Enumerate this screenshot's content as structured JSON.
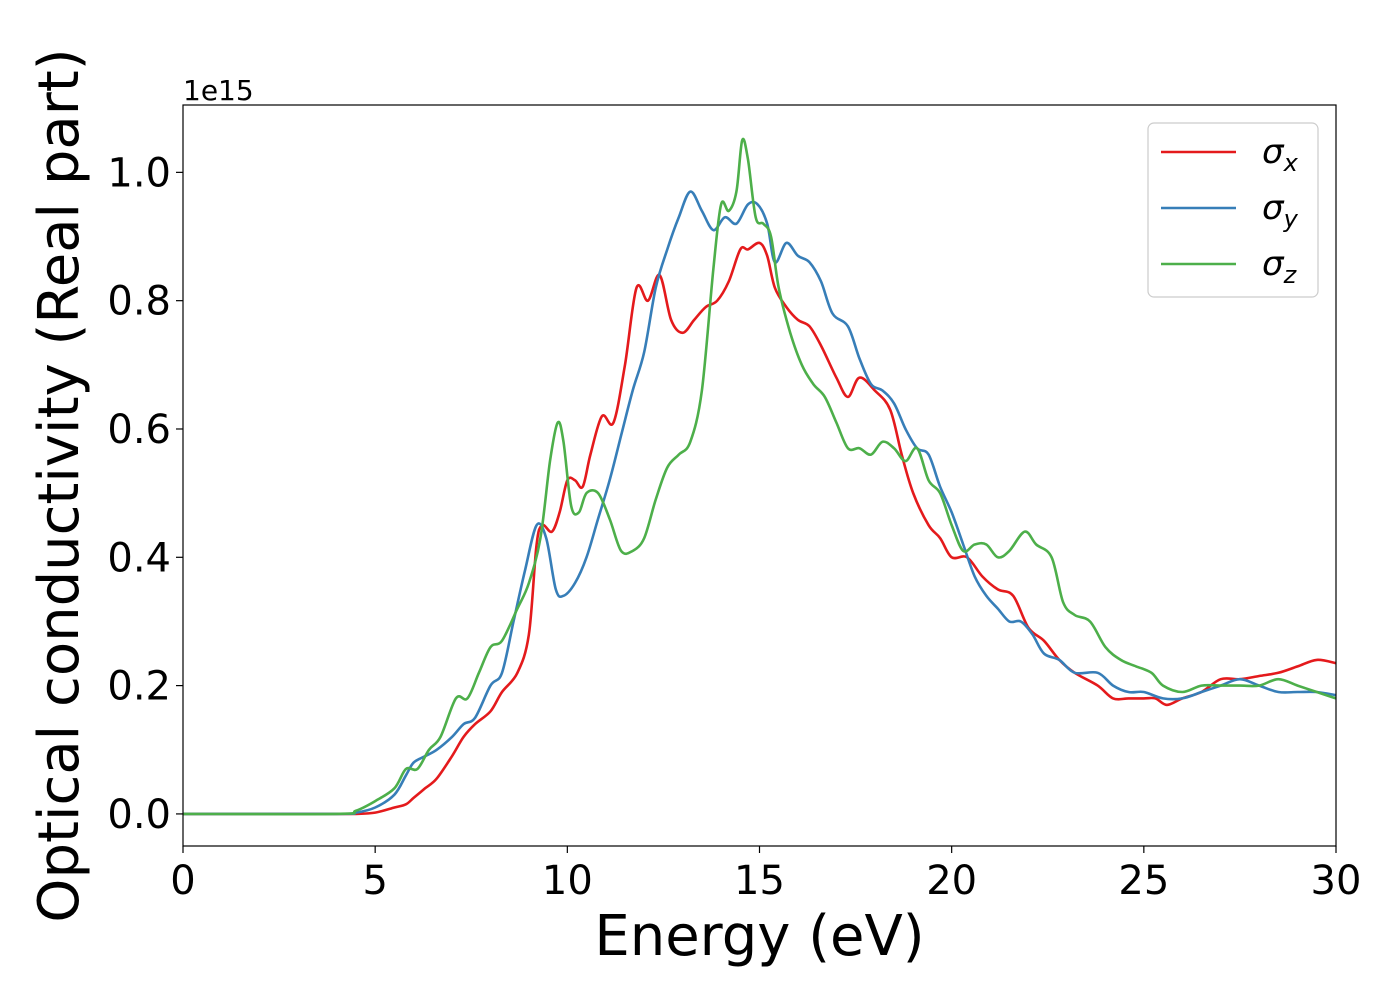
{
  "chart_data": {
    "type": "line",
    "xlabel": "Energy (eV)",
    "ylabel": "Optical conductivity (Real part)",
    "y_offset_label": "1e15",
    "xlim": [
      0,
      30
    ],
    "ylim": [
      -0.05,
      1.105
    ],
    "x_ticks": [
      0,
      5,
      10,
      15,
      20,
      25,
      30
    ],
    "x_tick_labels": [
      "0",
      "5",
      "10",
      "15",
      "20",
      "25",
      "30"
    ],
    "y_ticks": [
      0.0,
      0.2,
      0.4,
      0.6,
      0.8,
      1.0
    ],
    "y_tick_labels": [
      "0.0",
      "0.2",
      "0.4",
      "0.6",
      "0.8",
      "1.0"
    ],
    "grid": false,
    "legend_position": "top-right",
    "series": [
      {
        "name": "σx",
        "symbol": "σ",
        "subscript": "x",
        "color": "#e41a1c",
        "points": [
          [
            0,
            0.0
          ],
          [
            4,
            0.0
          ],
          [
            4.5,
            0.0
          ],
          [
            5,
            0.002
          ],
          [
            5.5,
            0.01
          ],
          [
            5.8,
            0.015
          ],
          [
            6,
            0.025
          ],
          [
            6.3,
            0.04
          ],
          [
            6.6,
            0.055
          ],
          [
            7,
            0.09
          ],
          [
            7.3,
            0.12
          ],
          [
            7.6,
            0.14
          ],
          [
            8,
            0.16
          ],
          [
            8.3,
            0.19
          ],
          [
            8.7,
            0.22
          ],
          [
            9,
            0.28
          ],
          [
            9.2,
            0.42
          ],
          [
            9.35,
            0.45
          ],
          [
            9.6,
            0.44
          ],
          [
            9.8,
            0.47
          ],
          [
            10.0,
            0.52
          ],
          [
            10.2,
            0.52
          ],
          [
            10.4,
            0.51
          ],
          [
            10.6,
            0.56
          ],
          [
            10.9,
            0.62
          ],
          [
            11.2,
            0.61
          ],
          [
            11.5,
            0.7
          ],
          [
            11.8,
            0.82
          ],
          [
            12.1,
            0.8
          ],
          [
            12.4,
            0.84
          ],
          [
            12.7,
            0.77
          ],
          [
            13.0,
            0.75
          ],
          [
            13.3,
            0.77
          ],
          [
            13.6,
            0.79
          ],
          [
            13.9,
            0.8
          ],
          [
            14.2,
            0.83
          ],
          [
            14.5,
            0.88
          ],
          [
            14.7,
            0.88
          ],
          [
            15.0,
            0.89
          ],
          [
            15.2,
            0.87
          ],
          [
            15.4,
            0.82
          ],
          [
            15.7,
            0.79
          ],
          [
            16.0,
            0.77
          ],
          [
            16.3,
            0.76
          ],
          [
            16.6,
            0.73
          ],
          [
            17.0,
            0.68
          ],
          [
            17.3,
            0.65
          ],
          [
            17.6,
            0.68
          ],
          [
            18.0,
            0.66
          ],
          [
            18.4,
            0.63
          ],
          [
            18.7,
            0.56
          ],
          [
            19.0,
            0.5
          ],
          [
            19.4,
            0.45
          ],
          [
            19.7,
            0.43
          ],
          [
            20.0,
            0.4
          ],
          [
            20.4,
            0.4
          ],
          [
            20.8,
            0.37
          ],
          [
            21.2,
            0.35
          ],
          [
            21.6,
            0.34
          ],
          [
            22.0,
            0.29
          ],
          [
            22.4,
            0.27
          ],
          [
            22.8,
            0.24
          ],
          [
            23.2,
            0.22
          ],
          [
            23.8,
            0.2
          ],
          [
            24.2,
            0.18
          ],
          [
            24.6,
            0.18
          ],
          [
            25.0,
            0.18
          ],
          [
            25.3,
            0.18
          ],
          [
            25.6,
            0.17
          ],
          [
            26.0,
            0.18
          ],
          [
            26.5,
            0.19
          ],
          [
            27.0,
            0.21
          ],
          [
            27.5,
            0.21
          ],
          [
            28.0,
            0.215
          ],
          [
            28.5,
            0.22
          ],
          [
            29.0,
            0.23
          ],
          [
            29.5,
            0.24
          ],
          [
            30.0,
            0.235
          ]
        ]
      },
      {
        "name": "σy",
        "symbol": "σ",
        "subscript": "y",
        "color": "#377eb8",
        "points": [
          [
            0,
            0.0
          ],
          [
            4,
            0.0
          ],
          [
            4.5,
            0.002
          ],
          [
            5,
            0.01
          ],
          [
            5.5,
            0.03
          ],
          [
            5.8,
            0.06
          ],
          [
            6.0,
            0.08
          ],
          [
            6.3,
            0.09
          ],
          [
            6.6,
            0.1
          ],
          [
            7.0,
            0.12
          ],
          [
            7.3,
            0.14
          ],
          [
            7.6,
            0.15
          ],
          [
            8.0,
            0.2
          ],
          [
            8.3,
            0.22
          ],
          [
            8.6,
            0.3
          ],
          [
            8.9,
            0.38
          ],
          [
            9.2,
            0.45
          ],
          [
            9.45,
            0.43
          ],
          [
            9.7,
            0.35
          ],
          [
            9.9,
            0.34
          ],
          [
            10.2,
            0.36
          ],
          [
            10.5,
            0.4
          ],
          [
            10.8,
            0.46
          ],
          [
            11.1,
            0.52
          ],
          [
            11.4,
            0.59
          ],
          [
            11.7,
            0.66
          ],
          [
            12.0,
            0.72
          ],
          [
            12.3,
            0.82
          ],
          [
            12.6,
            0.88
          ],
          [
            12.9,
            0.93
          ],
          [
            13.2,
            0.97
          ],
          [
            13.5,
            0.94
          ],
          [
            13.8,
            0.91
          ],
          [
            14.1,
            0.93
          ],
          [
            14.4,
            0.92
          ],
          [
            14.7,
            0.95
          ],
          [
            14.95,
            0.95
          ],
          [
            15.2,
            0.92
          ],
          [
            15.4,
            0.86
          ],
          [
            15.7,
            0.89
          ],
          [
            16.0,
            0.87
          ],
          [
            16.3,
            0.86
          ],
          [
            16.6,
            0.83
          ],
          [
            16.9,
            0.78
          ],
          [
            17.3,
            0.76
          ],
          [
            17.6,
            0.71
          ],
          [
            17.9,
            0.67
          ],
          [
            18.2,
            0.66
          ],
          [
            18.5,
            0.64
          ],
          [
            18.8,
            0.6
          ],
          [
            19.1,
            0.57
          ],
          [
            19.4,
            0.56
          ],
          [
            19.7,
            0.51
          ],
          [
            20.0,
            0.47
          ],
          [
            20.3,
            0.42
          ],
          [
            20.6,
            0.37
          ],
          [
            20.9,
            0.34
          ],
          [
            21.2,
            0.32
          ],
          [
            21.5,
            0.3
          ],
          [
            21.8,
            0.3
          ],
          [
            22.1,
            0.28
          ],
          [
            22.4,
            0.25
          ],
          [
            22.8,
            0.24
          ],
          [
            23.2,
            0.22
          ],
          [
            23.8,
            0.22
          ],
          [
            24.2,
            0.2
          ],
          [
            24.6,
            0.19
          ],
          [
            25.0,
            0.19
          ],
          [
            25.5,
            0.18
          ],
          [
            26.0,
            0.18
          ],
          [
            26.5,
            0.19
          ],
          [
            27.0,
            0.2
          ],
          [
            27.5,
            0.21
          ],
          [
            28.0,
            0.2
          ],
          [
            28.5,
            0.19
          ],
          [
            29.0,
            0.19
          ],
          [
            29.5,
            0.19
          ],
          [
            30.0,
            0.185
          ]
        ]
      },
      {
        "name": "σz",
        "symbol": "σ",
        "subscript": "z",
        "color": "#4daf4a",
        "points": [
          [
            0,
            0.0
          ],
          [
            4,
            0.0
          ],
          [
            4.5,
            0.005
          ],
          [
            5,
            0.02
          ],
          [
            5.5,
            0.04
          ],
          [
            5.8,
            0.07
          ],
          [
            6.1,
            0.07
          ],
          [
            6.4,
            0.1
          ],
          [
            6.7,
            0.12
          ],
          [
            7.1,
            0.18
          ],
          [
            7.4,
            0.18
          ],
          [
            7.7,
            0.22
          ],
          [
            8.0,
            0.26
          ],
          [
            8.3,
            0.27
          ],
          [
            8.7,
            0.32
          ],
          [
            9.0,
            0.36
          ],
          [
            9.3,
            0.43
          ],
          [
            9.55,
            0.55
          ],
          [
            9.75,
            0.61
          ],
          [
            9.9,
            0.58
          ],
          [
            10.1,
            0.48
          ],
          [
            10.3,
            0.47
          ],
          [
            10.5,
            0.5
          ],
          [
            10.8,
            0.5
          ],
          [
            11.1,
            0.46
          ],
          [
            11.4,
            0.41
          ],
          [
            11.7,
            0.41
          ],
          [
            12.0,
            0.43
          ],
          [
            12.3,
            0.49
          ],
          [
            12.6,
            0.54
          ],
          [
            12.9,
            0.56
          ],
          [
            13.2,
            0.58
          ],
          [
            13.5,
            0.66
          ],
          [
            13.8,
            0.85
          ],
          [
            14.0,
            0.95
          ],
          [
            14.2,
            0.94
          ],
          [
            14.4,
            0.97
          ],
          [
            14.55,
            1.05
          ],
          [
            14.7,
            1.02
          ],
          [
            14.9,
            0.93
          ],
          [
            15.1,
            0.92
          ],
          [
            15.3,
            0.9
          ],
          [
            15.5,
            0.82
          ],
          [
            15.8,
            0.75
          ],
          [
            16.1,
            0.7
          ],
          [
            16.4,
            0.67
          ],
          [
            16.7,
            0.65
          ],
          [
            17.0,
            0.61
          ],
          [
            17.3,
            0.57
          ],
          [
            17.6,
            0.57
          ],
          [
            17.9,
            0.56
          ],
          [
            18.2,
            0.58
          ],
          [
            18.5,
            0.57
          ],
          [
            18.8,
            0.55
          ],
          [
            19.1,
            0.57
          ],
          [
            19.4,
            0.52
          ],
          [
            19.7,
            0.5
          ],
          [
            20.0,
            0.45
          ],
          [
            20.3,
            0.41
          ],
          [
            20.6,
            0.42
          ],
          [
            20.9,
            0.42
          ],
          [
            21.2,
            0.4
          ],
          [
            21.5,
            0.41
          ],
          [
            21.9,
            0.44
          ],
          [
            22.2,
            0.42
          ],
          [
            22.6,
            0.4
          ],
          [
            22.9,
            0.33
          ],
          [
            23.2,
            0.31
          ],
          [
            23.6,
            0.3
          ],
          [
            24.0,
            0.26
          ],
          [
            24.4,
            0.24
          ],
          [
            24.8,
            0.23
          ],
          [
            25.2,
            0.22
          ],
          [
            25.5,
            0.2
          ],
          [
            26.0,
            0.19
          ],
          [
            26.5,
            0.2
          ],
          [
            27.0,
            0.2
          ],
          [
            27.5,
            0.2
          ],
          [
            28.0,
            0.2
          ],
          [
            28.5,
            0.21
          ],
          [
            29.0,
            0.2
          ],
          [
            29.5,
            0.19
          ],
          [
            30.0,
            0.18
          ]
        ]
      }
    ]
  }
}
